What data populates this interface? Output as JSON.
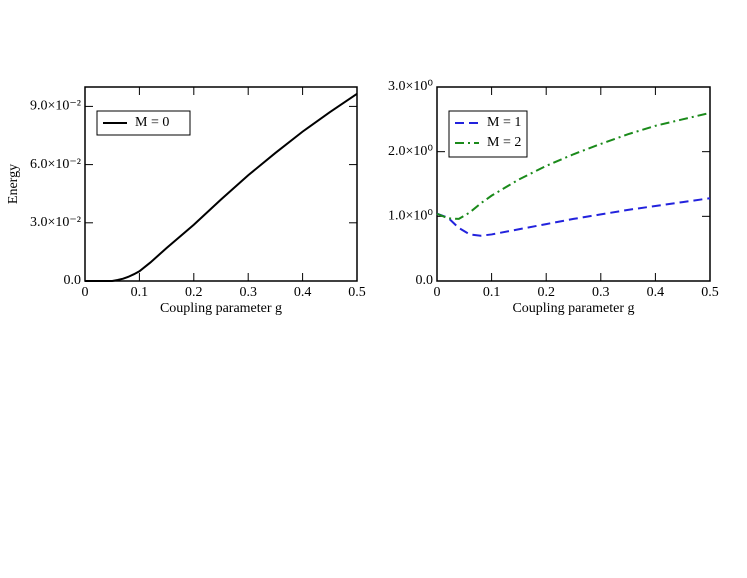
{
  "chart_data": [
    {
      "type": "line",
      "xlabel": "Coupling parameter g",
      "ylabel": "Energy",
      "x": [
        0,
        0.04,
        0.05,
        0.06,
        0.07,
        0.08,
        0.09,
        0.1,
        0.12,
        0.15,
        0.2,
        0.25,
        0.3,
        0.35,
        0.4,
        0.45,
        0.5
      ],
      "series": [
        {
          "name": "M = 0",
          "color": "#000000",
          "dash": "solid",
          "values": [
            0,
            0,
            0,
            0.0005,
            0.0012,
            0.0022,
            0.0035,
            0.005,
            0.0095,
            0.017,
            0.029,
            0.042,
            0.0545,
            0.066,
            0.077,
            0.087,
            0.0965
          ]
        }
      ],
      "xlim": [
        0,
        0.5
      ],
      "xticks": [
        0,
        0.1,
        0.2,
        0.3,
        0.4,
        0.5
      ],
      "ylim": [
        0,
        0.1
      ],
      "yticks": [
        {
          "value": 0,
          "label": "0.0"
        },
        {
          "value": 0.03,
          "label": "3.0×10⁻²"
        },
        {
          "value": 0.06,
          "label": "6.0×10⁻²"
        },
        {
          "value": 0.09,
          "label": "9.0×10⁻²"
        }
      ],
      "legend": "upper left"
    },
    {
      "type": "line",
      "xlabel": "Coupling parameter g",
      "x": [
        0,
        0.02,
        0.04,
        0.06,
        0.08,
        0.1,
        0.15,
        0.2,
        0.25,
        0.3,
        0.35,
        0.4,
        0.45,
        0.5
      ],
      "series": [
        {
          "name": "M = 1",
          "color": "#2222dd",
          "dash": "dashed",
          "values": [
            1.04,
            0.98,
            0.82,
            0.72,
            0.7,
            0.72,
            0.8,
            0.88,
            0.96,
            1.03,
            1.1,
            1.16,
            1.22,
            1.28
          ]
        },
        {
          "name": "M = 2",
          "color": "#1a8a1a",
          "dash": "dashdot",
          "values": [
            1.04,
            0.97,
            0.96,
            1.06,
            1.2,
            1.32,
            1.57,
            1.78,
            1.96,
            2.12,
            2.27,
            2.4,
            2.5,
            2.6
          ]
        }
      ],
      "xlim": [
        0,
        0.5
      ],
      "xticks": [
        0,
        0.1,
        0.2,
        0.3,
        0.4,
        0.5
      ],
      "ylim": [
        0,
        3
      ],
      "yticks": [
        {
          "value": 0,
          "label": "0.0"
        },
        {
          "value": 1,
          "label": "1.0×10⁰"
        },
        {
          "value": 2,
          "label": "2.0×10⁰"
        },
        {
          "value": 3,
          "label": "3.0×10⁰"
        }
      ],
      "legend": "upper left"
    }
  ]
}
